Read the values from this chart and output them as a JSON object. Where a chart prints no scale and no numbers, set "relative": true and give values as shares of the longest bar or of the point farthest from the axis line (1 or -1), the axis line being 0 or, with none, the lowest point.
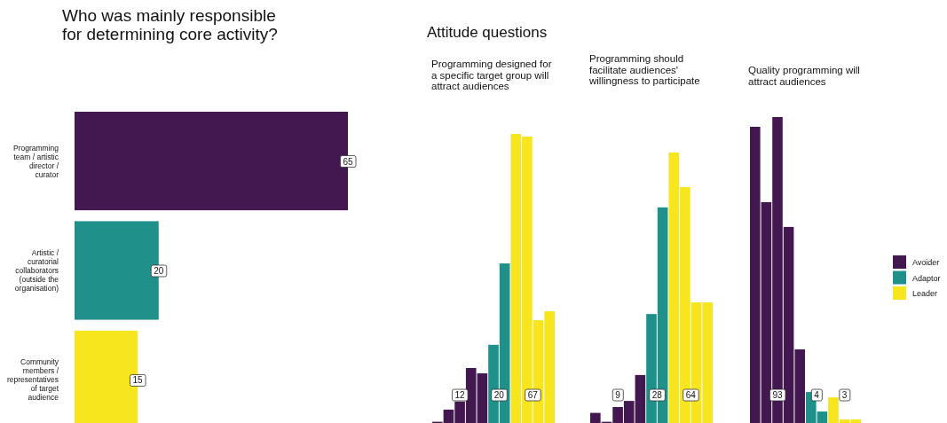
{
  "chart_data": [
    {
      "type": "bar",
      "orientation": "horizontal",
      "title": "Who was mainly responsible for determining core activity?",
      "categories": [
        "Programming team / artistic director / curator",
        "Artistic / curatorial collaborators (outside the organisation)",
        "Community members / representatives of target audience"
      ],
      "values": [
        65,
        20,
        15
      ],
      "colors": [
        "#43174f",
        "#1f918a",
        "#f7e51e"
      ],
      "data_labels": true
    },
    {
      "type": "bar",
      "relative": true,
      "subtitle": "Attitude questions",
      "title": "Programming designed for a specific target group will attract audiences",
      "categories": [
        null,
        null,
        null,
        null,
        null,
        null,
        null,
        null,
        null,
        null,
        null
      ],
      "values": [
        0.031,
        0.072,
        0.099,
        0.212,
        0.194,
        0.29,
        0.564,
        1,
        0.991,
        0.373,
        0.403
      ],
      "colors": [
        "#43174f",
        "#43174f",
        "#43174f",
        "#43174f",
        "#43174f",
        "#1f918a",
        "#1f918a",
        "#f7e51e",
        "#f7e51e",
        "#f7e51e",
        "#f7e51e"
      ],
      "annotations": [
        "12",
        "20",
        "67"
      ]
    },
    {
      "type": "bar",
      "relative": true,
      "title": "Programming should facilitate audiences' willingness to participate",
      "categories": [
        null,
        null,
        null,
        null,
        null,
        null,
        null,
        null,
        null,
        null,
        null
      ],
      "values": [
        0.065,
        0.033,
        0.086,
        0.108,
        0.201,
        0.42,
        0.803,
        1,
        0.876,
        0.462,
        0.462
      ],
      "colors": [
        "#43174f",
        "#43174f",
        "#43174f",
        "#43174f",
        "#43174f",
        "#1f918a",
        "#1f918a",
        "#f7e51e",
        "#f7e51e",
        "#f7e51e",
        "#f7e51e"
      ],
      "annotations": [
        "9",
        "28",
        "64"
      ]
    },
    {
      "type": "bar",
      "relative": true,
      "title": "Quality programming will attract audiences",
      "categories": [
        null,
        null,
        null,
        null,
        null,
        null,
        null,
        null,
        null,
        null
      ],
      "values": [
        0.969,
        0.729,
        1,
        0.65,
        0.26,
        0.124,
        0.062,
        0.107,
        0.037,
        0.037
      ],
      "colors": [
        "#43174f",
        "#43174f",
        "#43174f",
        "#43174f",
        "#43174f",
        "#1f918a",
        "#1f918a",
        "#f7e51e",
        "#f7e51e",
        "#f7e51e"
      ],
      "annotations": [
        "93",
        "4",
        "3"
      ]
    },
    {
      "type": "other",
      "legend": "right",
      "series": [
        {
          "name": "Avoider",
          "color": "#43174f"
        },
        {
          "name": "Adaptor",
          "color": "#1f918a"
        },
        {
          "name": "Leader",
          "color": "#f7e51e"
        }
      ]
    }
  ]
}
